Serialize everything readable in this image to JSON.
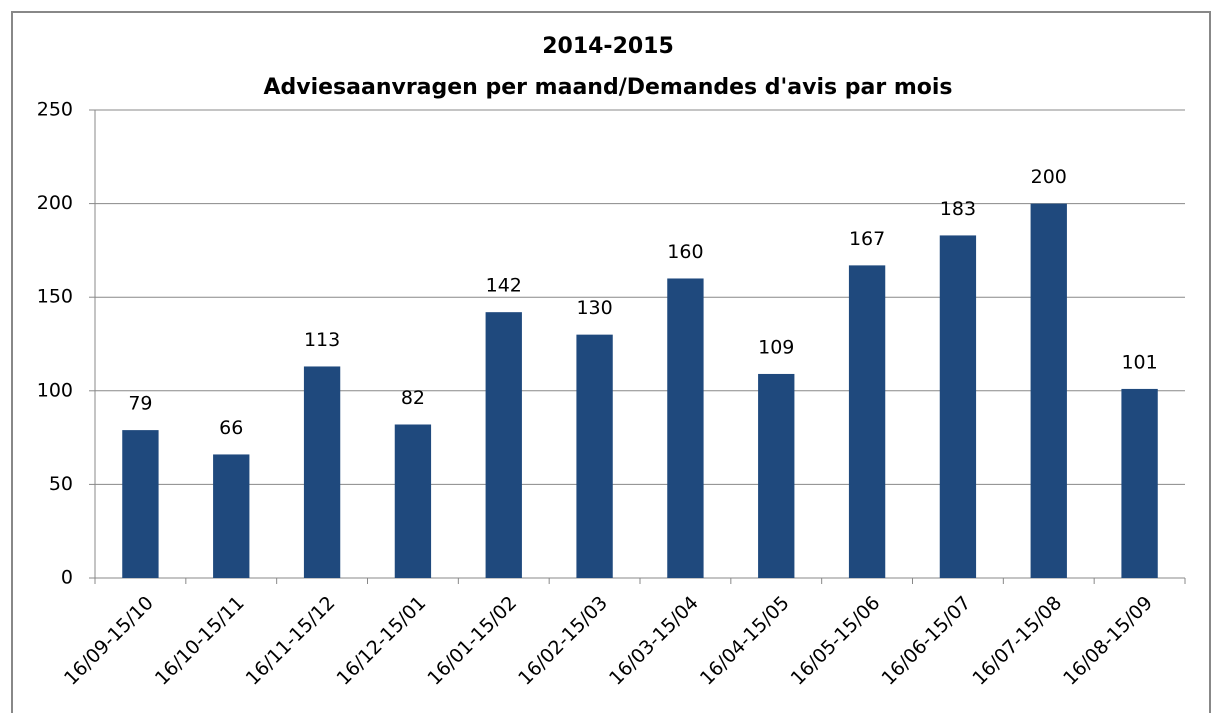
{
  "chart_data": {
    "type": "bar",
    "title": [
      "2014-2015",
      "Adviesaanvragen per maand/Demandes d'avis par mois"
    ],
    "categories": [
      "16/09-15/10",
      "16/10-15/11",
      "16/11-15/12",
      "16/12-15/01",
      "16/01-15/02",
      "16/02-15/03",
      "16/03-15/04",
      "16/04-15/05",
      "16/05-15/06",
      "16/06-15/07",
      "16/07-15/08",
      "16/08-15/09"
    ],
    "values": [
      79,
      66,
      113,
      82,
      142,
      130,
      160,
      109,
      167,
      183,
      200,
      101
    ],
    "color": "#1f497d",
    "ylim": [
      0,
      250
    ],
    "yticks": [
      0,
      50,
      100,
      150,
      200,
      250
    ],
    "grid": true
  }
}
